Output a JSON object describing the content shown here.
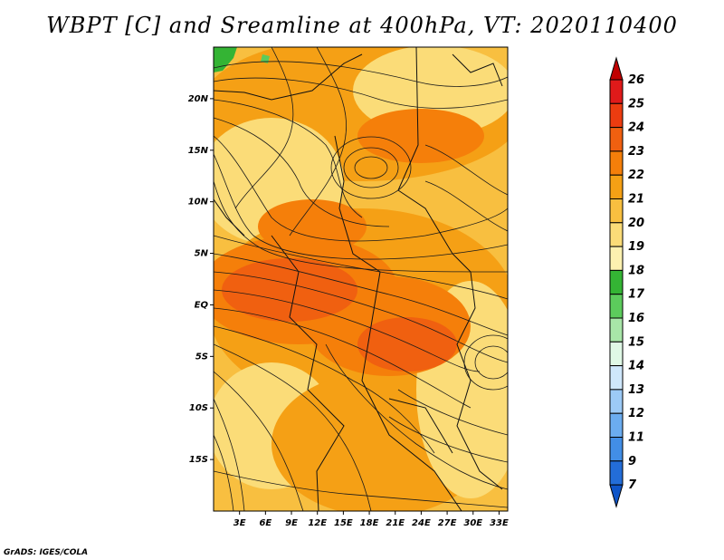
{
  "title": "WBPT [C] and Sreamline at 400hPa, VT: 2020110400",
  "credit": "GrADS: IGES/COLA",
  "map": {
    "lat_labels": [
      "20N",
      "15N",
      "10N",
      "5N",
      "EQ",
      "5S",
      "10S",
      "15S"
    ],
    "lat_values": [
      20,
      15,
      10,
      5,
      0,
      -5,
      -10,
      -15
    ],
    "lon_labels": [
      "3E",
      "6E",
      "9E",
      "12E",
      "15E",
      "18E",
      "21E",
      "24E",
      "27E",
      "30E",
      "33E"
    ],
    "lon_values": [
      3,
      6,
      9,
      12,
      15,
      18,
      21,
      24,
      27,
      30,
      33
    ],
    "lon_range": [
      0,
      34
    ],
    "lat_range": [
      -20,
      25
    ]
  },
  "colorbar": {
    "labels": [
      "26",
      "25",
      "24",
      "23",
      "22",
      "21",
      "20",
      "19",
      "18",
      "17",
      "16",
      "15",
      "14",
      "13",
      "12",
      "11",
      "9",
      "7"
    ],
    "colors": [
      "#c00000",
      "#e01a1a",
      "#ec3c10",
      "#f06010",
      "#f57f0a",
      "#f5a015",
      "#f8bf40",
      "#fbdc78",
      "#fdf1b0",
      "#34b434",
      "#5ccb5c",
      "#a8e6a8",
      "#e0f8e6",
      "#cfe7fb",
      "#9ccaf6",
      "#6bacef",
      "#428ee6",
      "#236dd8",
      "#0f55c8"
    ]
  }
}
